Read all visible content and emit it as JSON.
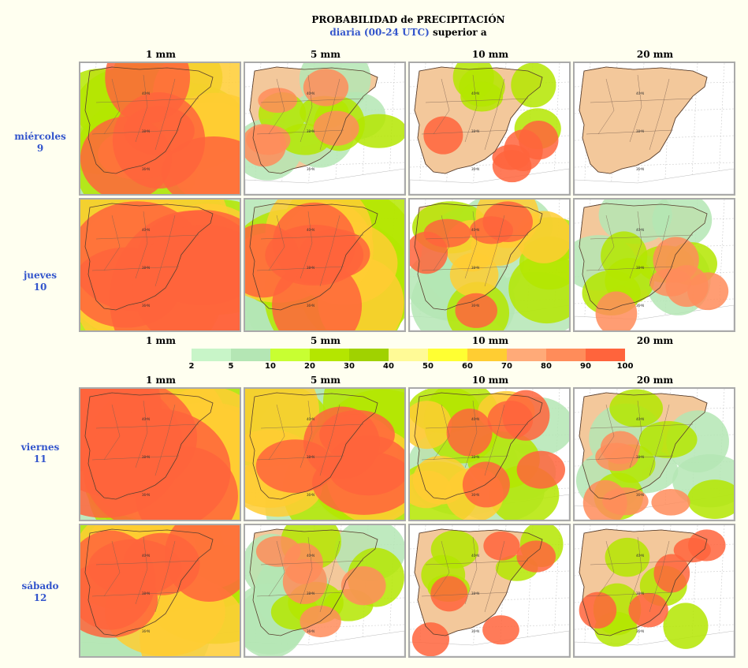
{
  "header": {
    "title": "PROBABILIDAD de PRECIPITACIÓN",
    "subtitle_blue": "diaria (00-24 UTC)",
    "subtitle_black": "superior a"
  },
  "thresholds": [
    "1 mm",
    "5 mm",
    "10 mm",
    "20 mm"
  ],
  "days": [
    {
      "name": "miércoles",
      "num": "9"
    },
    {
      "name": "jueves",
      "num": "10"
    },
    {
      "name": "viernes",
      "num": "11"
    },
    {
      "name": "sábado",
      "num": "12"
    }
  ],
  "legend": {
    "ticks": [
      "2",
      "5",
      "10",
      "20",
      "30",
      "40",
      "50",
      "60",
      "70",
      "80",
      "90",
      "100"
    ],
    "colors": [
      "#c8f5c8",
      "#b4e6b4",
      "#c8ff32",
      "#b4e600",
      "#a0d200",
      "#fffa96",
      "#ffff32",
      "#ffcd32",
      "#ffaa78",
      "#ff8c5a",
      "#ff643c"
    ]
  },
  "map_labels": [
    "40ºN",
    "38ºN",
    "36ºN"
  ],
  "panels": [
    {
      "day": "miércoles 9",
      "threshold": "1 mm",
      "coverage": "high"
    },
    {
      "day": "miércoles 9",
      "threshold": "5 mm",
      "coverage": "low"
    },
    {
      "day": "miércoles 9",
      "threshold": "10 mm",
      "coverage": "very-low"
    },
    {
      "day": "miércoles 9",
      "threshold": "20 mm",
      "coverage": "none"
    },
    {
      "day": "jueves 10",
      "threshold": "1 mm",
      "coverage": "very-high"
    },
    {
      "day": "jueves 10",
      "threshold": "5 mm",
      "coverage": "high"
    },
    {
      "day": "jueves 10",
      "threshold": "10 mm",
      "coverage": "medium"
    },
    {
      "day": "jueves 10",
      "threshold": "20 mm",
      "coverage": "low"
    },
    {
      "day": "viernes 11",
      "threshold": "1 mm",
      "coverage": "very-high"
    },
    {
      "day": "viernes 11",
      "threshold": "5 mm",
      "coverage": "high"
    },
    {
      "day": "viernes 11",
      "threshold": "10 mm",
      "coverage": "medium"
    },
    {
      "day": "viernes 11",
      "threshold": "20 mm",
      "coverage": "low"
    },
    {
      "day": "sábado 12",
      "threshold": "1 mm",
      "coverage": "high"
    },
    {
      "day": "sábado 12",
      "threshold": "5 mm",
      "coverage": "low"
    },
    {
      "day": "sábado 12",
      "threshold": "10 mm",
      "coverage": "very-low"
    },
    {
      "day": "sábado 12",
      "threshold": "20 mm",
      "coverage": "very-low"
    }
  ]
}
